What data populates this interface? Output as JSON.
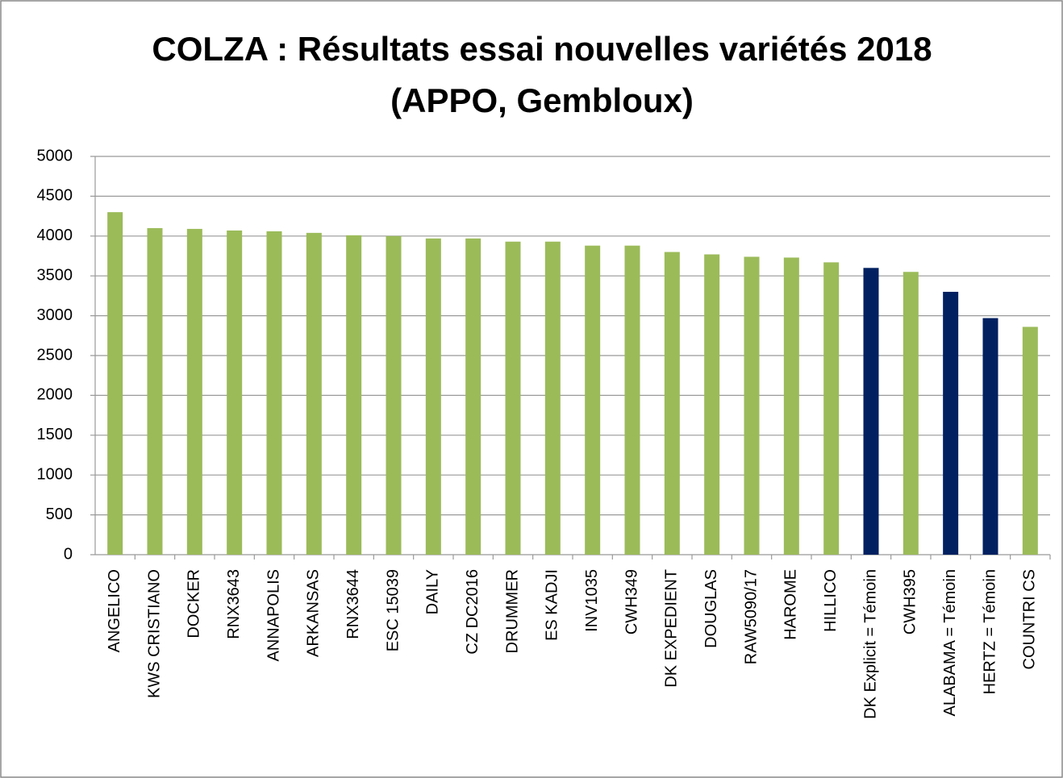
{
  "chart_data": {
    "type": "bar",
    "title": [
      "COLZA : Résultats essai nouvelles variétés 2018",
      "(APPO, Gembloux)"
    ],
    "categories": [
      "ANGELICO",
      "KWS CRISTIANO",
      "DOCKER",
      "RNX3643",
      "ANNAPOLIS",
      "ARKANSAS",
      "RNX3644",
      "ESC 15039",
      "DAILY",
      "CZ DC2016",
      "DRUMMER",
      "ES KADJI",
      "INV1035",
      "CWH349",
      "DK EXPEDIENT",
      "DOUGLAS",
      "RAW5090/17",
      "HAROME",
      "HILLICO",
      "DK Explicit = Témoin",
      "CWH395",
      "ALABAMA = Témoin",
      "HERTZ = Témoin",
      "COUNTRI CS"
    ],
    "values": [
      4300,
      4100,
      4090,
      4070,
      4060,
      4040,
      4010,
      4000,
      3970,
      3970,
      3930,
      3930,
      3880,
      3880,
      3800,
      3770,
      3740,
      3730,
      3670,
      3600,
      3550,
      3300,
      2970,
      2860
    ],
    "colors": [
      "#9bbb59",
      "#9bbb59",
      "#9bbb59",
      "#9bbb59",
      "#9bbb59",
      "#9bbb59",
      "#9bbb59",
      "#9bbb59",
      "#9bbb59",
      "#9bbb59",
      "#9bbb59",
      "#9bbb59",
      "#9bbb59",
      "#9bbb59",
      "#9bbb59",
      "#9bbb59",
      "#9bbb59",
      "#9bbb59",
      "#9bbb59",
      "#002060",
      "#9bbb59",
      "#002060",
      "#002060",
      "#9bbb59"
    ],
    "ylim": [
      0,
      5000
    ],
    "yticks": [
      0,
      500,
      1000,
      1500,
      2000,
      2500,
      3000,
      3500,
      4000,
      4500,
      5000
    ],
    "grid": true
  }
}
